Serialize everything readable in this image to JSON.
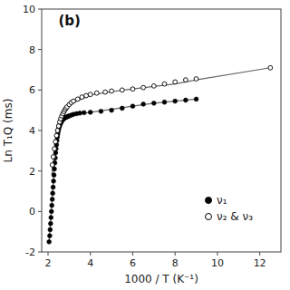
{
  "chart_data": {
    "type": "scatter",
    "title": "(b)",
    "xlabel": "1000 / T (K⁻¹)",
    "ylabel": "Ln T₁Q (ms)",
    "xlim": [
      1.7,
      13
    ],
    "ylim": [
      -2,
      10
    ],
    "xticks": [
      2,
      4,
      6,
      8,
      10,
      12
    ],
    "yticks": [
      -2,
      0,
      2,
      4,
      6,
      8,
      10
    ],
    "grid": false,
    "legend": "lower right",
    "series": [
      {
        "type": "line",
        "color": "#666666",
        "x": [
          2.05,
          2.3,
          2.5,
          2.7,
          3.0,
          4.0,
          5.0,
          6.0,
          7.0,
          8.0,
          9.0
        ],
        "values": [
          -1.5,
          2.2,
          4.1,
          4.55,
          4.72,
          4.9,
          5.05,
          5.2,
          5.35,
          5.45,
          5.55
        ]
      },
      {
        "type": "line",
        "color": "#666666",
        "x": [
          2.18,
          2.4,
          2.6,
          2.8,
          3.0,
          4.0,
          5.0,
          6.0,
          7.0,
          8.0,
          9.0,
          12.5
        ],
        "values": [
          1.8,
          3.8,
          4.6,
          5.05,
          5.28,
          5.75,
          5.92,
          6.05,
          6.18,
          6.3,
          6.5,
          7.1
        ]
      },
      {
        "name": "ν₁",
        "type": "scatter",
        "marker": "circle",
        "color": "#000000",
        "x": [
          2.05,
          2.08,
          2.1,
          2.12,
          2.14,
          2.16,
          2.18,
          2.2,
          2.22,
          2.24,
          2.26,
          2.28,
          2.3,
          2.32,
          2.34,
          2.36,
          2.38,
          2.4,
          2.42,
          2.44,
          2.46,
          2.48,
          2.5,
          2.52,
          2.54,
          2.56,
          2.58,
          2.6,
          2.62,
          2.65,
          2.68,
          2.72,
          2.75,
          2.78,
          2.82,
          2.86,
          2.9,
          2.95,
          3.0,
          3.1,
          3.2,
          3.35,
          3.5,
          3.7,
          4.0,
          4.5,
          5.0,
          5.5,
          6.0,
          6.5,
          7.0,
          7.5,
          8.0,
          8.5,
          9.0
        ],
        "values": [
          -1.5,
          -1.2,
          -0.9,
          -0.6,
          -0.3,
          0.0,
          0.3,
          0.6,
          0.9,
          1.2,
          1.5,
          1.8,
          2.1,
          2.4,
          2.65,
          2.9,
          3.1,
          3.3,
          3.5,
          3.68,
          3.82,
          3.95,
          4.05,
          4.15,
          4.22,
          4.28,
          4.33,
          4.38,
          4.42,
          4.47,
          4.52,
          4.56,
          4.6,
          4.62,
          4.64,
          4.66,
          4.68,
          4.7,
          4.72,
          4.76,
          4.8,
          4.83,
          4.86,
          4.88,
          4.9,
          4.95,
          5.0,
          5.1,
          5.2,
          5.3,
          5.35,
          5.4,
          5.45,
          5.5,
          5.55
        ]
      },
      {
        "name": "ν₂ & ν₃",
        "type": "scatter",
        "marker": "open-circle",
        "color": "#000000",
        "x": [
          2.2,
          2.25,
          2.3,
          2.35,
          2.4,
          2.45,
          2.5,
          2.55,
          2.6,
          2.65,
          2.7,
          2.75,
          2.8,
          2.85,
          2.9,
          3.0,
          3.1,
          3.2,
          3.4,
          3.6,
          3.8,
          4.0,
          4.3,
          4.7,
          5.0,
          5.5,
          6.0,
          6.5,
          7.0,
          7.5,
          8.0,
          8.5,
          9.0,
          12.5
        ],
        "values": [
          2.3,
          2.7,
          3.1,
          3.45,
          3.75,
          4.0,
          4.22,
          4.42,
          4.58,
          4.72,
          4.83,
          4.93,
          5.02,
          5.1,
          5.17,
          5.28,
          5.38,
          5.45,
          5.55,
          5.65,
          5.72,
          5.78,
          5.85,
          5.9,
          5.95,
          6.0,
          6.05,
          6.12,
          6.2,
          6.3,
          6.4,
          6.5,
          6.55,
          7.1
        ]
      }
    ]
  }
}
